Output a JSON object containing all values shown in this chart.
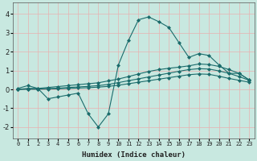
{
  "title": "",
  "xlabel": "Humidex (Indice chaleur)",
  "bg_color": "#c8e8e0",
  "plot_bg_color": "#c8e8e0",
  "line_color": "#1a6b6b",
  "grid_color": "#e8b0b0",
  "xlim": [
    -0.5,
    23.5
  ],
  "ylim": [
    -2.6,
    4.6
  ],
  "yticks": [
    -2,
    -1,
    0,
    1,
    2,
    3,
    4
  ],
  "xtick_labels": [
    "0",
    "1",
    "2",
    "3",
    "4",
    "5",
    "6",
    "7",
    "8",
    "9",
    "10",
    "11",
    "12",
    "13",
    "14",
    "15",
    "16",
    "17",
    "18",
    "19",
    "20",
    "21",
    "22",
    "23"
  ],
  "curve1_x": [
    0,
    1,
    2,
    3,
    4,
    5,
    6,
    7,
    8,
    9,
    10,
    11,
    12,
    13,
    14,
    15,
    16,
    17,
    18,
    19,
    20,
    21,
    22,
    23
  ],
  "curve1_y": [
    0.05,
    0.2,
    0.05,
    -0.5,
    -0.4,
    -0.3,
    -0.2,
    -1.3,
    -2.0,
    -1.3,
    1.3,
    2.6,
    3.7,
    3.85,
    3.6,
    3.3,
    2.5,
    1.7,
    1.9,
    1.8,
    1.3,
    0.85,
    0.85,
    0.5
  ],
  "curve2_x": [
    0,
    1,
    2,
    3,
    4,
    5,
    6,
    7,
    8,
    9,
    10,
    11,
    12,
    13,
    14,
    15,
    16,
    17,
    18,
    19,
    20,
    21,
    22,
    23
  ],
  "curve2_y": [
    0.0,
    0.05,
    0.05,
    0.1,
    0.15,
    0.2,
    0.25,
    0.3,
    0.35,
    0.45,
    0.55,
    0.68,
    0.82,
    0.95,
    1.05,
    1.12,
    1.18,
    1.25,
    1.35,
    1.32,
    1.22,
    1.05,
    0.85,
    0.5
  ],
  "curve3_x": [
    0,
    1,
    2,
    3,
    4,
    5,
    6,
    7,
    8,
    9,
    10,
    11,
    12,
    13,
    14,
    15,
    16,
    17,
    18,
    19,
    20,
    21,
    22,
    23
  ],
  "curve3_y": [
    0.0,
    0.02,
    0.02,
    0.04,
    0.06,
    0.1,
    0.13,
    0.16,
    0.2,
    0.26,
    0.36,
    0.46,
    0.56,
    0.66,
    0.76,
    0.86,
    0.96,
    1.05,
    1.1,
    1.08,
    0.98,
    0.85,
    0.68,
    0.48
  ],
  "curve4_x": [
    0,
    1,
    2,
    3,
    4,
    5,
    6,
    7,
    8,
    9,
    10,
    11,
    12,
    13,
    14,
    15,
    16,
    17,
    18,
    19,
    20,
    21,
    22,
    23
  ],
  "curve4_y": [
    0.0,
    0.01,
    0.01,
    0.02,
    0.03,
    0.05,
    0.07,
    0.09,
    0.12,
    0.16,
    0.22,
    0.3,
    0.38,
    0.46,
    0.54,
    0.62,
    0.7,
    0.78,
    0.82,
    0.8,
    0.7,
    0.58,
    0.48,
    0.38
  ]
}
